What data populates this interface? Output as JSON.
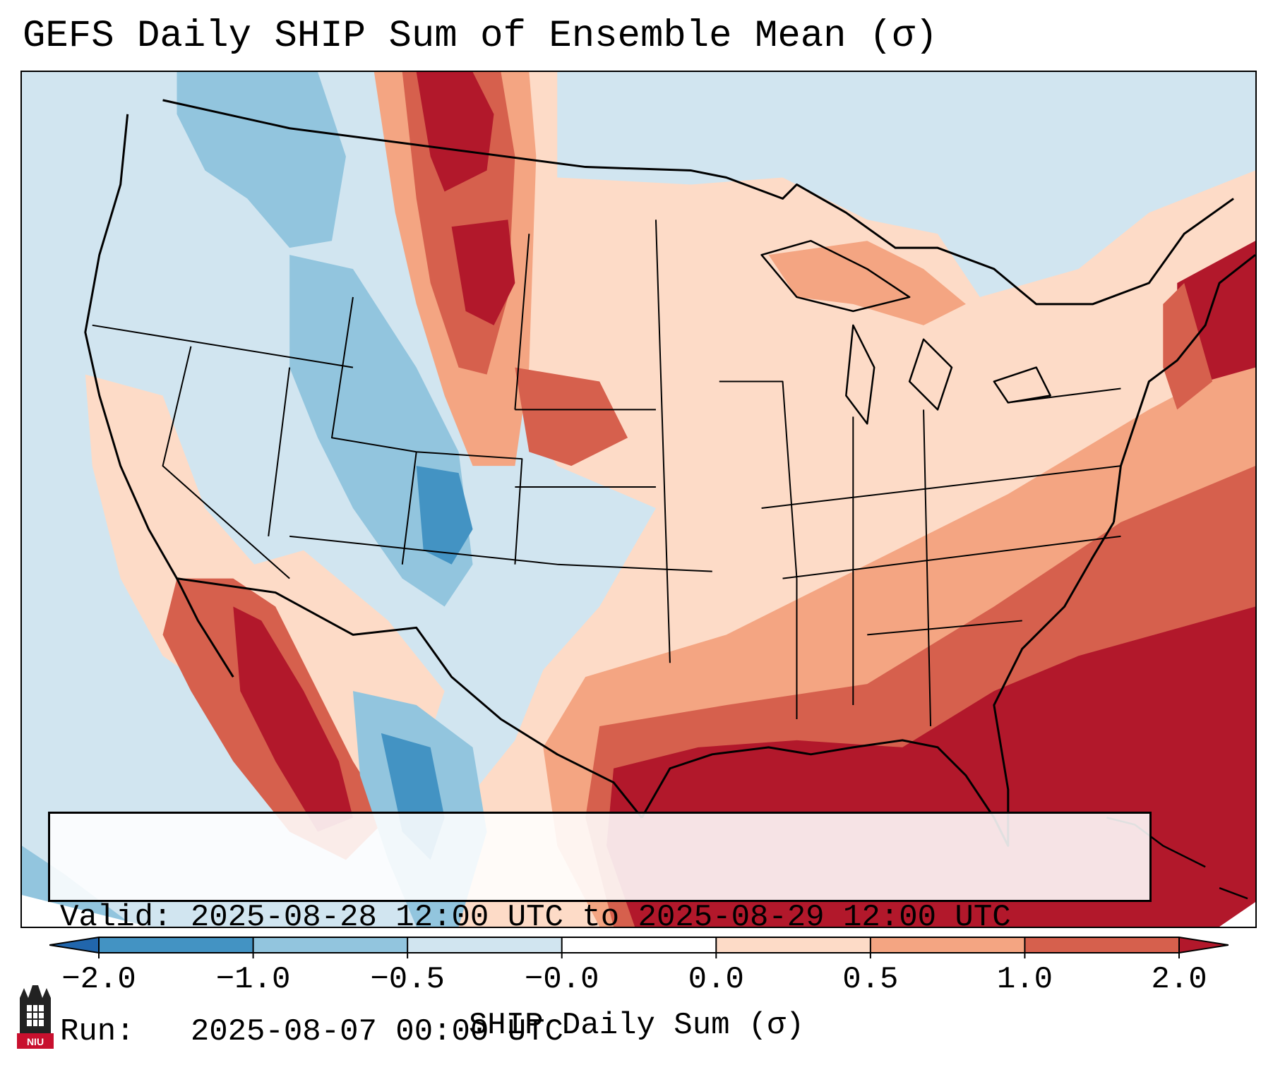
{
  "title": "GEFS Daily SHIP Sum of Ensemble Mean (σ)",
  "info": {
    "valid_label": "Valid:",
    "valid_value": "2025-08-28 12:00 UTC to 2025-08-29 12:00 UTC",
    "run_label": "Run:",
    "run_value": "2025-08-07 00:00 UTC"
  },
  "colorbar": {
    "label": "SHIP Daily Sum (σ)",
    "ticks": [
      "−2.0",
      "−1.0",
      "−0.5",
      "−0.0",
      "0.0",
      "0.5",
      "1.0",
      "2.0"
    ],
    "bins": [
      {
        "range": "< -2.0",
        "color": "#2166ac"
      },
      {
        "range": "-2.0 to -1.0",
        "color": "#4393c3"
      },
      {
        "range": "-1.0 to -0.5",
        "color": "#92c5de"
      },
      {
        "range": "-0.5 to -0.0",
        "color": "#d1e5f0"
      },
      {
        "range": "-0.0 to 0.0",
        "color": "#ffffff"
      },
      {
        "range": "0.0 to 0.5",
        "color": "#fddbc7"
      },
      {
        "range": "0.5 to 1.0",
        "color": "#f4a582"
      },
      {
        "range": "1.0 to 2.0",
        "color": "#d6604d"
      },
      {
        "range": "> 2.0",
        "color": "#b2182b"
      }
    ]
  },
  "colors": {
    "very_strong_negative": "#2166ac",
    "strong_negative": "#4393c3",
    "moderate_negative": "#92c5de",
    "weak_negative": "#d1e5f0",
    "neutral": "#ffffff",
    "weak_positive": "#fddbc7",
    "moderate_positive": "#f4a582",
    "strong_positive": "#d6604d",
    "very_strong_positive": "#b2182b"
  },
  "logo": {
    "text": "NIU"
  }
}
